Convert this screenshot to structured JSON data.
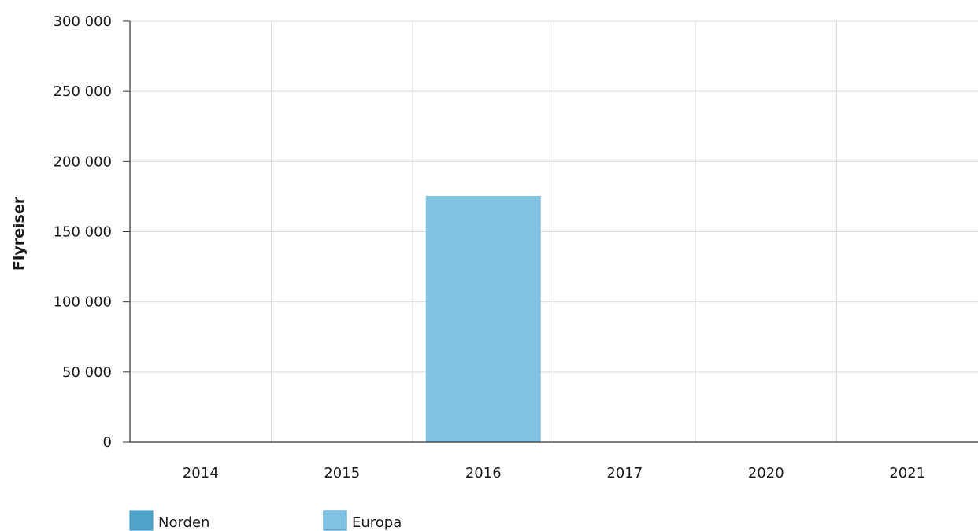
{
  "chart_data": {
    "type": "bar",
    "categories": [
      "2014",
      "2015",
      "2016",
      "2017",
      "2020",
      "2021"
    ],
    "series": [
      {
        "name": "Norden",
        "color": "#4fa3cb",
        "values": [
          0,
          0,
          0,
          0,
          0,
          0
        ]
      },
      {
        "name": "Europa",
        "color": "#82c2e2",
        "values": [
          0,
          0,
          175500,
          0,
          0,
          0
        ]
      }
    ],
    "title": "",
    "xlabel": "",
    "ylabel": "Flyreiser",
    "ylim": [
      0,
      300000
    ],
    "yticks": [
      0,
      50000,
      100000,
      150000,
      200000,
      250000,
      300000
    ],
    "ytick_labels": [
      "0",
      "50 000",
      "100 000",
      "150 000",
      "200 000",
      "250 000",
      "300 000"
    ],
    "grid": true,
    "legend_position": "bottom-left",
    "colors": {
      "grid": "#d9d9d9",
      "axis": "#333333"
    }
  }
}
